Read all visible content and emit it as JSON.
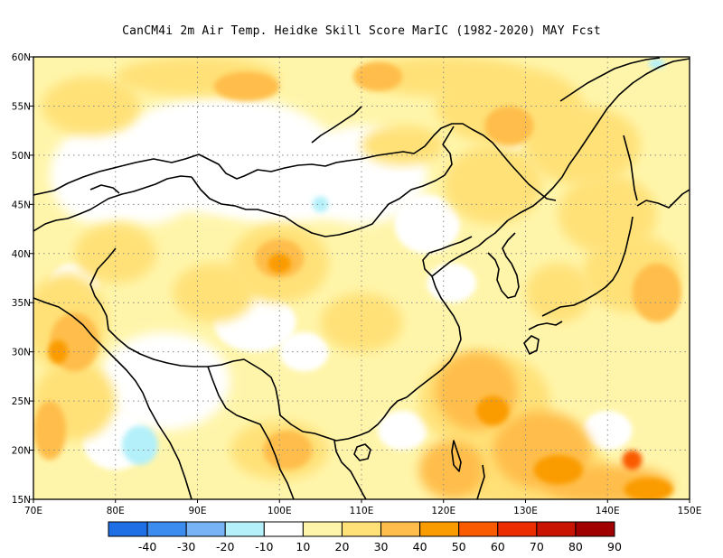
{
  "title": "CanCM4i  2m Air Temp. Heidke Skill Score MarIC (1982-2020) MAY Fcst",
  "map": {
    "lon_range": [
      70,
      150
    ],
    "lat_range": [
      15,
      60
    ],
    "lon_ticks": [
      "70E",
      "80E",
      "90E",
      "100E",
      "110E",
      "120E",
      "130E",
      "140E",
      "150E"
    ],
    "lat_ticks": [
      "15N",
      "20N",
      "25N",
      "30N",
      "35N",
      "40N",
      "45N",
      "50N",
      "55N",
      "60N"
    ],
    "gridlines": "dotted"
  },
  "colorbar": {
    "labels": [
      "-40",
      "-30",
      "-20",
      "-10",
      "10",
      "20",
      "30",
      "40",
      "50",
      "60",
      "70",
      "80",
      "90"
    ],
    "colors": [
      "#1e6ee6",
      "#3c8cf0",
      "#78b4f5",
      "#b4f0fa",
      "#ffffff",
      "#fff5aa",
      "#ffe178",
      "#ffbe4b",
      "#fa9b00",
      "#fa5a00",
      "#eb2d00",
      "#c81400",
      "#a00000"
    ]
  }
}
